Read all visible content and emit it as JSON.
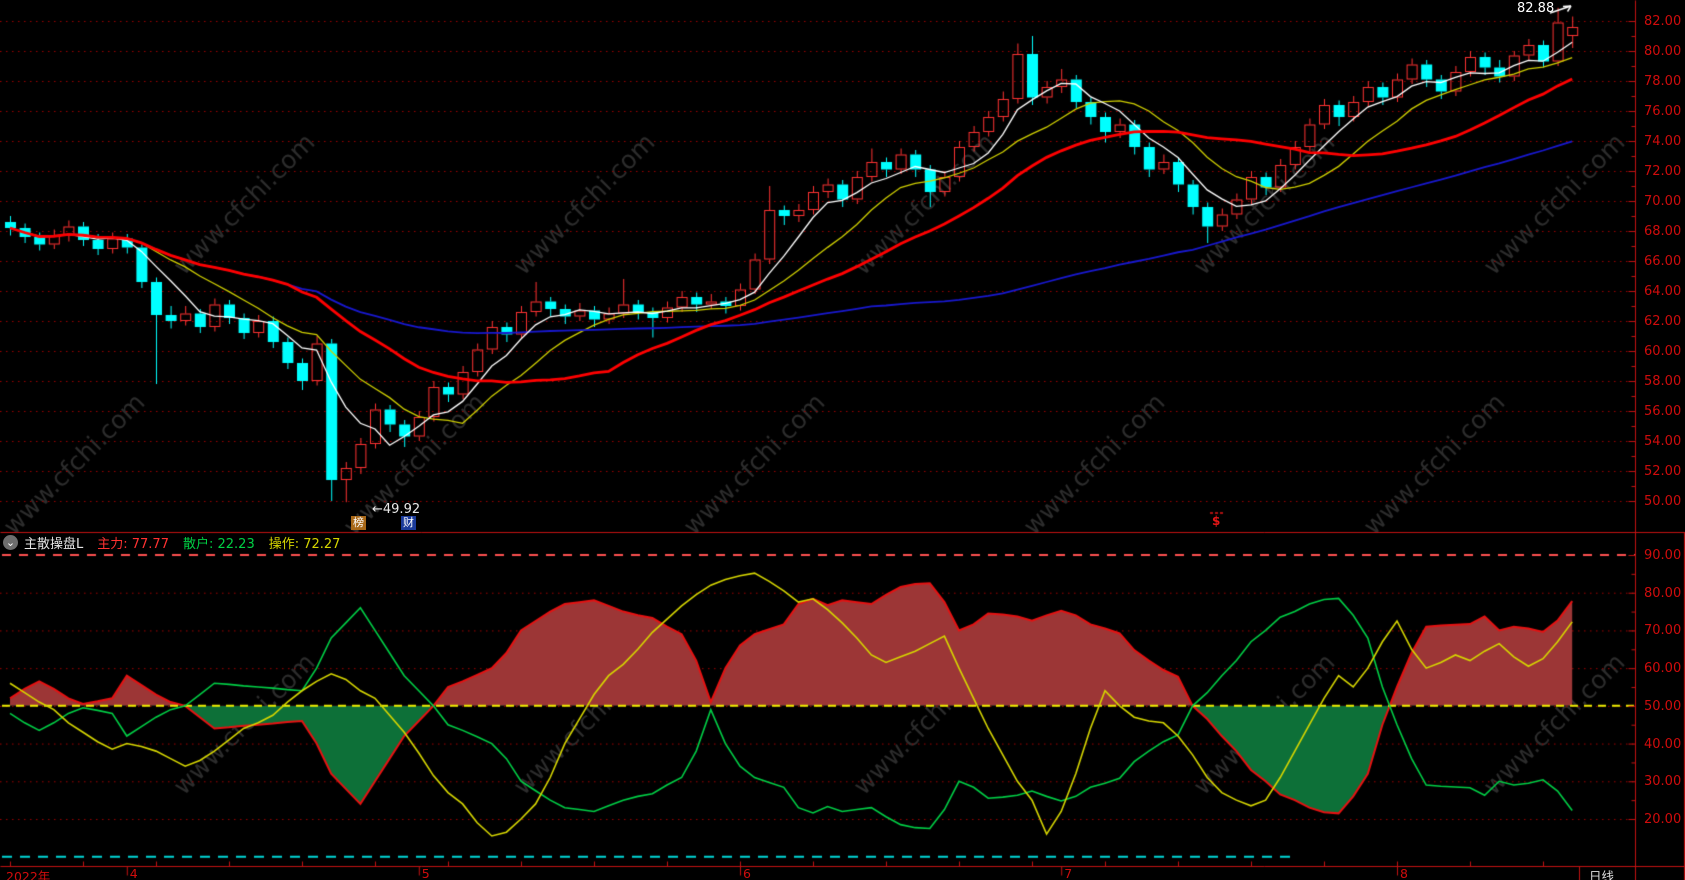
{
  "watermark": {
    "text": "www.cfchi.com"
  },
  "indicator": {
    "icon_glyph": "⌄",
    "title": "主散操盘L",
    "legend": [
      {
        "text": "主力: 77.77",
        "color": "#ff3232"
      },
      {
        "text": "散户: 22.23",
        "color": "#00d044"
      },
      {
        "text": "操作: 72.27",
        "color": "#d6d600"
      }
    ]
  },
  "main_chart": {
    "annotations": {
      "high": "82.88",
      "low": "←49.92"
    },
    "markers": {
      "bang": {
        "text": "榜",
        "bg": "#a86818"
      },
      "cai": {
        "text": "财",
        "bg": "#1a3a99"
      },
      "dollar": {
        "text": "$",
        "color": "#e41616"
      }
    }
  },
  "x_axis": {
    "period_label": "日线",
    "labels": [
      {
        "text": "2022年",
        "index": 0
      },
      {
        "text": "4",
        "index": 8
      },
      {
        "text": "5",
        "index": 28
      },
      {
        "text": "6",
        "index": 50
      },
      {
        "text": "7",
        "index": 72
      },
      {
        "text": "8",
        "index": 95
      }
    ]
  },
  "colors": {
    "up": "#ff3232",
    "down": "#00ffff",
    "ma5": "#ffffff",
    "ma10": "#cfcf00",
    "ma20": "#ff0000",
    "ma60": "#1818cf",
    "zhuli_line": "#e61212",
    "fill_above": "#9c3636",
    "fill_below": "#0d7038",
    "sanhu_line": "#00cf46",
    "caozuo_line": "#d6d600",
    "grid": "#a30000",
    "axis": "#c41212",
    "label": "#d00c0c",
    "upper_dashed": "#ff5050",
    "mid_dashed": "#efef00",
    "cyan_dashed": "#00d8d8",
    "watermark": "#2d2d2d"
  },
  "chart_data": {
    "type": "candlestick",
    "main": {
      "ylim": [
        50,
        82
      ],
      "ticks": [
        "82.00",
        "80.00",
        "78.00",
        "76.00",
        "74.00",
        "72.00",
        "70.00",
        "68.00",
        "66.00",
        "64.00",
        "62.00",
        "60.00",
        "58.00",
        "56.00",
        "54.00",
        "52.00",
        "50.00"
      ],
      "ma_periods": [
        5,
        10,
        20,
        60
      ],
      "high_label_value": 82.88,
      "low_label_value": 49.92,
      "candles": [
        [
          68.6,
          69.0,
          67.7,
          68.2
        ],
        [
          68.2,
          68.5,
          67.2,
          67.6
        ],
        [
          67.6,
          67.9,
          66.7,
          67.1
        ],
        [
          67.1,
          68.1,
          66.8,
          67.7
        ],
        [
          67.7,
          68.7,
          67.3,
          68.3
        ],
        [
          68.3,
          68.6,
          67.0,
          67.4
        ],
        [
          67.4,
          67.8,
          66.4,
          66.8
        ],
        [
          66.8,
          67.9,
          66.5,
          67.5
        ],
        [
          67.5,
          67.8,
          66.5,
          66.9
        ],
        [
          66.9,
          67.1,
          64.2,
          64.6
        ],
        [
          64.6,
          64.9,
          57.8,
          62.4
        ],
        [
          62.4,
          63.0,
          61.5,
          62.0
        ],
        [
          62.0,
          63.0,
          61.7,
          62.5
        ],
        [
          62.5,
          62.8,
          61.2,
          61.6
        ],
        [
          61.6,
          63.5,
          61.3,
          63.1
        ],
        [
          63.1,
          63.4,
          61.8,
          62.2
        ],
        [
          62.2,
          62.5,
          60.8,
          61.2
        ],
        [
          61.2,
          62.4,
          60.9,
          62.0
        ],
        [
          62.0,
          62.3,
          60.2,
          60.6
        ],
        [
          60.6,
          60.9,
          58.8,
          59.2
        ],
        [
          59.2,
          59.5,
          57.4,
          58.0
        ],
        [
          58.0,
          61.0,
          57.7,
          60.5
        ],
        [
          60.5,
          60.8,
          50.0,
          51.4
        ],
        [
          51.4,
          52.6,
          49.92,
          52.2
        ],
        [
          52.2,
          54.2,
          51.8,
          53.8
        ],
        [
          53.8,
          56.5,
          53.5,
          56.1
        ],
        [
          56.1,
          56.4,
          54.6,
          55.1
        ],
        [
          55.1,
          55.4,
          53.6,
          54.3
        ],
        [
          54.3,
          56.0,
          54.0,
          55.6
        ],
        [
          55.6,
          58.0,
          55.3,
          57.6
        ],
        [
          57.6,
          57.9,
          56.6,
          57.1
        ],
        [
          57.1,
          59.0,
          56.8,
          58.6
        ],
        [
          58.6,
          60.5,
          58.3,
          60.1
        ],
        [
          60.1,
          62.0,
          59.8,
          61.6
        ],
        [
          61.6,
          61.9,
          60.6,
          61.1
        ],
        [
          61.1,
          63.0,
          60.8,
          62.6
        ],
        [
          62.6,
          64.6,
          62.3,
          63.3
        ],
        [
          63.3,
          63.6,
          62.3,
          62.8
        ],
        [
          62.8,
          63.1,
          61.8,
          62.3
        ],
        [
          62.3,
          63.2,
          62.0,
          62.7
        ],
        [
          62.7,
          63.0,
          61.6,
          62.1
        ],
        [
          62.1,
          62.9,
          61.8,
          62.5
        ],
        [
          62.5,
          64.8,
          62.2,
          63.1
        ],
        [
          63.1,
          63.4,
          62.1,
          62.6
        ],
        [
          62.6,
          62.9,
          60.9,
          62.2
        ],
        [
          62.2,
          63.3,
          61.9,
          62.9
        ],
        [
          62.9,
          64.0,
          62.6,
          63.6
        ],
        [
          63.6,
          63.9,
          62.6,
          63.1
        ],
        [
          63.1,
          63.8,
          62.8,
          63.3
        ],
        [
          63.3,
          63.6,
          62.5,
          63.0
        ],
        [
          63.0,
          64.5,
          62.7,
          64.1
        ],
        [
          64.1,
          66.5,
          63.8,
          66.1
        ],
        [
          66.1,
          71.0,
          65.8,
          69.4
        ],
        [
          69.4,
          69.7,
          68.4,
          69.0
        ],
        [
          69.0,
          69.8,
          68.6,
          69.4
        ],
        [
          69.4,
          71.0,
          69.1,
          70.6
        ],
        [
          70.6,
          71.5,
          70.2,
          71.1
        ],
        [
          71.1,
          71.4,
          69.6,
          70.1
        ],
        [
          70.1,
          72.0,
          69.8,
          71.6
        ],
        [
          71.6,
          73.5,
          71.3,
          72.6
        ],
        [
          72.6,
          72.9,
          71.6,
          72.1
        ],
        [
          72.1,
          73.5,
          71.8,
          73.1
        ],
        [
          73.1,
          73.4,
          71.6,
          72.1
        ],
        [
          72.1,
          72.4,
          69.6,
          70.6
        ],
        [
          70.6,
          72.0,
          70.3,
          71.6
        ],
        [
          71.6,
          74.0,
          71.3,
          73.6
        ],
        [
          73.6,
          75.0,
          73.3,
          74.6
        ],
        [
          74.6,
          76.0,
          74.3,
          75.6
        ],
        [
          75.6,
          77.3,
          75.3,
          76.8
        ],
        [
          76.8,
          80.5,
          76.5,
          79.8
        ],
        [
          79.8,
          81.0,
          76.4,
          76.9
        ],
        [
          76.9,
          78.0,
          76.5,
          77.6
        ],
        [
          77.6,
          78.8,
          77.2,
          78.1
        ],
        [
          78.1,
          78.4,
          76.2,
          76.6
        ],
        [
          76.6,
          76.9,
          75.1,
          75.6
        ],
        [
          75.6,
          75.9,
          73.9,
          74.6
        ],
        [
          74.6,
          75.5,
          74.2,
          75.1
        ],
        [
          75.1,
          75.4,
          73.1,
          73.6
        ],
        [
          73.6,
          73.9,
          71.6,
          72.1
        ],
        [
          72.1,
          73.1,
          71.8,
          72.6
        ],
        [
          72.6,
          72.9,
          70.6,
          71.1
        ],
        [
          71.1,
          71.4,
          69.1,
          69.6
        ],
        [
          69.6,
          69.9,
          67.2,
          68.3
        ],
        [
          68.3,
          69.5,
          68.0,
          69.1
        ],
        [
          69.1,
          70.5,
          68.8,
          70.1
        ],
        [
          70.1,
          72.0,
          69.8,
          71.6
        ],
        [
          71.6,
          71.9,
          70.4,
          70.9
        ],
        [
          70.9,
          72.8,
          70.6,
          72.4
        ],
        [
          72.4,
          74.0,
          72.1,
          73.6
        ],
        [
          73.6,
          75.5,
          73.3,
          75.1
        ],
        [
          75.1,
          76.8,
          74.8,
          76.4
        ],
        [
          76.4,
          76.7,
          75.0,
          75.6
        ],
        [
          75.6,
          77.0,
          75.3,
          76.6
        ],
        [
          76.6,
          78.0,
          76.3,
          77.6
        ],
        [
          77.6,
          77.9,
          76.4,
          76.9
        ],
        [
          76.9,
          78.5,
          76.6,
          78.1
        ],
        [
          78.1,
          79.5,
          77.8,
          79.1
        ],
        [
          79.1,
          79.4,
          77.6,
          78.1
        ],
        [
          78.1,
          78.4,
          76.8,
          77.3
        ],
        [
          77.3,
          79.0,
          77.0,
          78.6
        ],
        [
          78.6,
          80.0,
          78.3,
          79.6
        ],
        [
          79.6,
          79.9,
          78.4,
          78.9
        ],
        [
          78.9,
          79.4,
          77.9,
          78.3
        ],
        [
          78.3,
          80.0,
          78.0,
          79.7
        ],
        [
          79.7,
          80.8,
          79.4,
          80.4
        ],
        [
          80.4,
          80.7,
          78.9,
          79.3
        ],
        [
          79.3,
          82.88,
          79.0,
          81.9
        ],
        [
          81.0,
          82.3,
          80.2,
          81.6
        ]
      ]
    },
    "sub": {
      "name": "主散操盘L",
      "ylim": [
        20,
        90
      ],
      "ticks": [
        "90.00",
        "80.00",
        "70.00",
        "60.00",
        "50.00",
        "40.00",
        "30.00",
        "20.00"
      ],
      "levels": {
        "upper_dashed": 90,
        "mid_dashed": 50,
        "bottom_cyan": 10
      },
      "sanhu_rule": "100 - zhuli",
      "zhuli": [
        52,
        54.5,
        56.5,
        54.5,
        52,
        50.5,
        51.2,
        52,
        58,
        55.5,
        53,
        51,
        50,
        47,
        44,
        44.3,
        44.7,
        45,
        45.3,
        45.7,
        46,
        40,
        32,
        28,
        24,
        30,
        36,
        42,
        46,
        50,
        55,
        56.5,
        58.2,
        60,
        64,
        70,
        72.5,
        75,
        77,
        77.5,
        78,
        76.5,
        75,
        74,
        73.3,
        71,
        69,
        62,
        51,
        60,
        66,
        69,
        70.3,
        71.6,
        77,
        78.4,
        76.7,
        78,
        77.5,
        77,
        79.4,
        81.5,
        82.3,
        82.5,
        77.5,
        70,
        71.6,
        74.5,
        74.2,
        73.7,
        72.6,
        74,
        75.2,
        74,
        71.6,
        70.5,
        69.2,
        64.8,
        62,
        59.5,
        57.7,
        50,
        46.5,
        42,
        38,
        33,
        30,
        26.5,
        25,
        23,
        21.8,
        21.5,
        26,
        32,
        45,
        55,
        64,
        71,
        71.3,
        71.5,
        71.7,
        73.7,
        70,
        71,
        70.5,
        69.6,
        72.6,
        77.77
      ],
      "caozuo": [
        56,
        53.5,
        51,
        49,
        45.5,
        43,
        40.5,
        38.5,
        40,
        39.2,
        38,
        36,
        34,
        35.5,
        38,
        41,
        44,
        45.5,
        47.5,
        51,
        54,
        56.5,
        58.5,
        57,
        54,
        52,
        47.5,
        43,
        37.5,
        31.5,
        27,
        24,
        19,
        15.5,
        16.5,
        20,
        24,
        31,
        40,
        46.5,
        53,
        58,
        61,
        65,
        69.5,
        73,
        76.5,
        79.5,
        82,
        83.5,
        84.5,
        85.2,
        83,
        80.5,
        77.5,
        78.4,
        75.5,
        72,
        68,
        63.5,
        61.5,
        63,
        64.5,
        66.5,
        68.5,
        60,
        52,
        44,
        37,
        30,
        25,
        16,
        22,
        32,
        44,
        54,
        50,
        47,
        46,
        45.5,
        42,
        37,
        31,
        27,
        25,
        23.5,
        25,
        31,
        38,
        45,
        52,
        58,
        55,
        60,
        67,
        72.5,
        65,
        60,
        61.5,
        63.5,
        62,
        64.5,
        66.5,
        63,
        60.5,
        62.5,
        67,
        72.27
      ]
    }
  }
}
